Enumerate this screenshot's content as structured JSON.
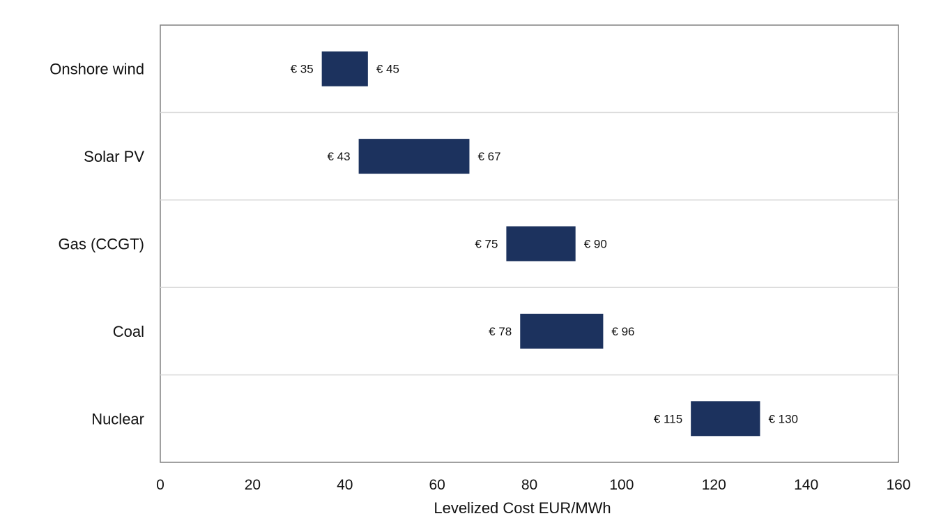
{
  "chart_data": {
    "type": "bar",
    "orientation": "horizontal",
    "subtype": "floating-range",
    "categories": [
      "Onshore wind",
      "Solar PV",
      "Gas (CCGT)",
      "Coal",
      "Nuclear"
    ],
    "ranges": [
      {
        "low": 35,
        "high": 45,
        "low_label": "€ 35",
        "high_label": "€ 45"
      },
      {
        "low": 43,
        "high": 67,
        "low_label": "€ 43",
        "high_label": "€ 67"
      },
      {
        "low": 75,
        "high": 90,
        "low_label": "€ 75",
        "high_label": "€ 90"
      },
      {
        "low": 78,
        "high": 96,
        "low_label": "€ 78",
        "high_label": "€ 96"
      },
      {
        "low": 115,
        "high": 130,
        "low_label": "€ 115",
        "high_label": "€ 130"
      }
    ],
    "xlabel": "Levelized Cost EUR/MWh",
    "xlim": [
      0,
      160
    ],
    "xticks": [
      0,
      20,
      40,
      60,
      80,
      100,
      120,
      140,
      160
    ],
    "bar_color": "#1c325e",
    "grid": "horizontal separators between categories",
    "legend": "none"
  }
}
